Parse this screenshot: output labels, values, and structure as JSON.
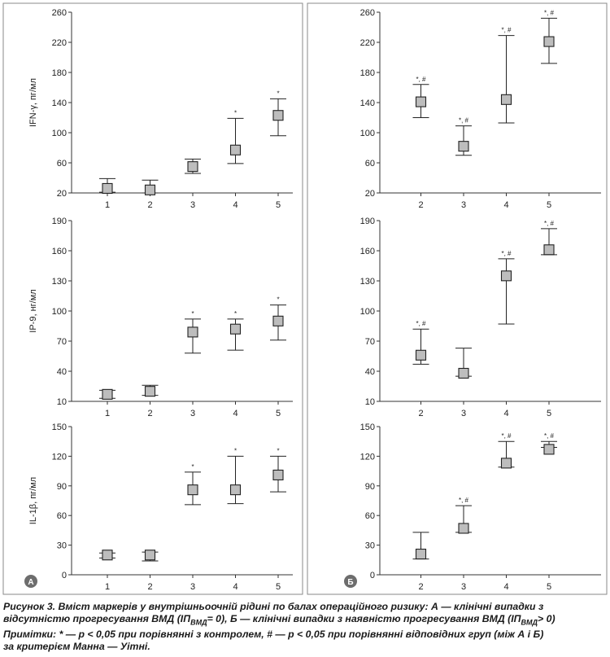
{
  "caption": {
    "line1": "Рисунок 3. Вміст маркерів у внутрішньоочній рідині по балах операційного ризику: А — клінічні випадки з",
    "line2": "відсутністю прогресування ВМД (ІП",
    "line2_sub": "ВМД",
    "line2_b": "= 0), Б — клінічні випадки з наявністю прогресування ВМД (ІП",
    "line2_sub2": "ВМД",
    "line2_c": "> 0)",
    "line3": "Примітки: * — p < 0,05 при порівнянні з контролем, # — p < 0,05 при порівнянні відповідних груп (між А і Б)",
    "line4": "за критерієм Манна — Уітні."
  },
  "panel_badges": {
    "A": "А",
    "B": "Б"
  },
  "chart_data": [
    {
      "type": "scatter",
      "panel": "А",
      "ylabel": "IFN-γ, пг/мл",
      "categories": [
        "1",
        "2",
        "3",
        "4",
        "5"
      ],
      "yticks": [
        20,
        60,
        100,
        140,
        180,
        220,
        260
      ],
      "ylim": [
        20,
        260
      ],
      "values": [
        26,
        24,
        55,
        77,
        123
      ],
      "lower": [
        21,
        20,
        46,
        59,
        96
      ],
      "upper": [
        39,
        37,
        65,
        119,
        145
      ],
      "sig": [
        "",
        "",
        "",
        "*",
        "*"
      ]
    },
    {
      "type": "scatter",
      "panel": "Б",
      "ylabel": "",
      "categories": [
        "2",
        "3",
        "4",
        "5"
      ],
      "yticks": [
        20,
        60,
        100,
        140,
        180,
        220,
        260
      ],
      "ylim": [
        20,
        260
      ],
      "values": [
        141,
        82,
        144,
        221
      ],
      "lower": [
        120,
        70,
        113,
        192
      ],
      "upper": [
        164,
        109,
        229,
        252
      ],
      "sig": [
        "*, #",
        "*, #",
        "*, #",
        "*, #"
      ]
    },
    {
      "type": "scatter",
      "panel": "А",
      "ylabel": "IP-9, нг/мл",
      "categories": [
        "1",
        "2",
        "3",
        "4",
        "5"
      ],
      "yticks": [
        10,
        40,
        70,
        100,
        130,
        160,
        190
      ],
      "ylim": [
        10,
        190
      ],
      "values": [
        17,
        20,
        79,
        82,
        90
      ],
      "lower": [
        13,
        16,
        58,
        61,
        71
      ],
      "upper": [
        21,
        26,
        92,
        92,
        106
      ],
      "sig": [
        "",
        "",
        "*",
        "*",
        "*"
      ]
    },
    {
      "type": "scatter",
      "panel": "Б",
      "ylabel": "",
      "categories": [
        "2",
        "3",
        "4",
        "5"
      ],
      "yticks": [
        10,
        40,
        70,
        100,
        130,
        160,
        190
      ],
      "ylim": [
        10,
        190
      ],
      "values": [
        56,
        38,
        135,
        161
      ],
      "lower": [
        47,
        35,
        87,
        156
      ],
      "upper": [
        82,
        63,
        152,
        182
      ],
      "sig": [
        "*, #",
        "",
        "*, #",
        "*, #"
      ]
    },
    {
      "type": "scatter",
      "panel": "А",
      "ylabel": "IL-1β, пг/мл",
      "categories": [
        "1",
        "2",
        "3",
        "4",
        "5"
      ],
      "yticks": [
        0,
        30,
        60,
        90,
        120,
        150
      ],
      "ylim": [
        0,
        150
      ],
      "values": [
        20,
        20,
        86,
        86,
        101
      ],
      "lower": [
        17,
        14,
        71,
        72,
        84
      ],
      "upper": [
        22,
        23,
        104,
        120,
        120
      ],
      "sig": [
        "",
        "",
        "*",
        "*",
        "*"
      ]
    },
    {
      "type": "scatter",
      "panel": "Б",
      "ylabel": "",
      "categories": [
        "2",
        "3",
        "4",
        "5"
      ],
      "yticks": [
        0,
        30,
        60,
        90,
        120,
        150
      ],
      "ylim": [
        0,
        150
      ],
      "values": [
        21,
        47,
        113,
        127
      ],
      "lower": [
        16,
        43,
        109,
        129
      ],
      "upper": [
        43,
        70,
        135,
        135
      ],
      "sig": [
        "",
        "*, #",
        "*, #",
        "*, #"
      ]
    }
  ]
}
